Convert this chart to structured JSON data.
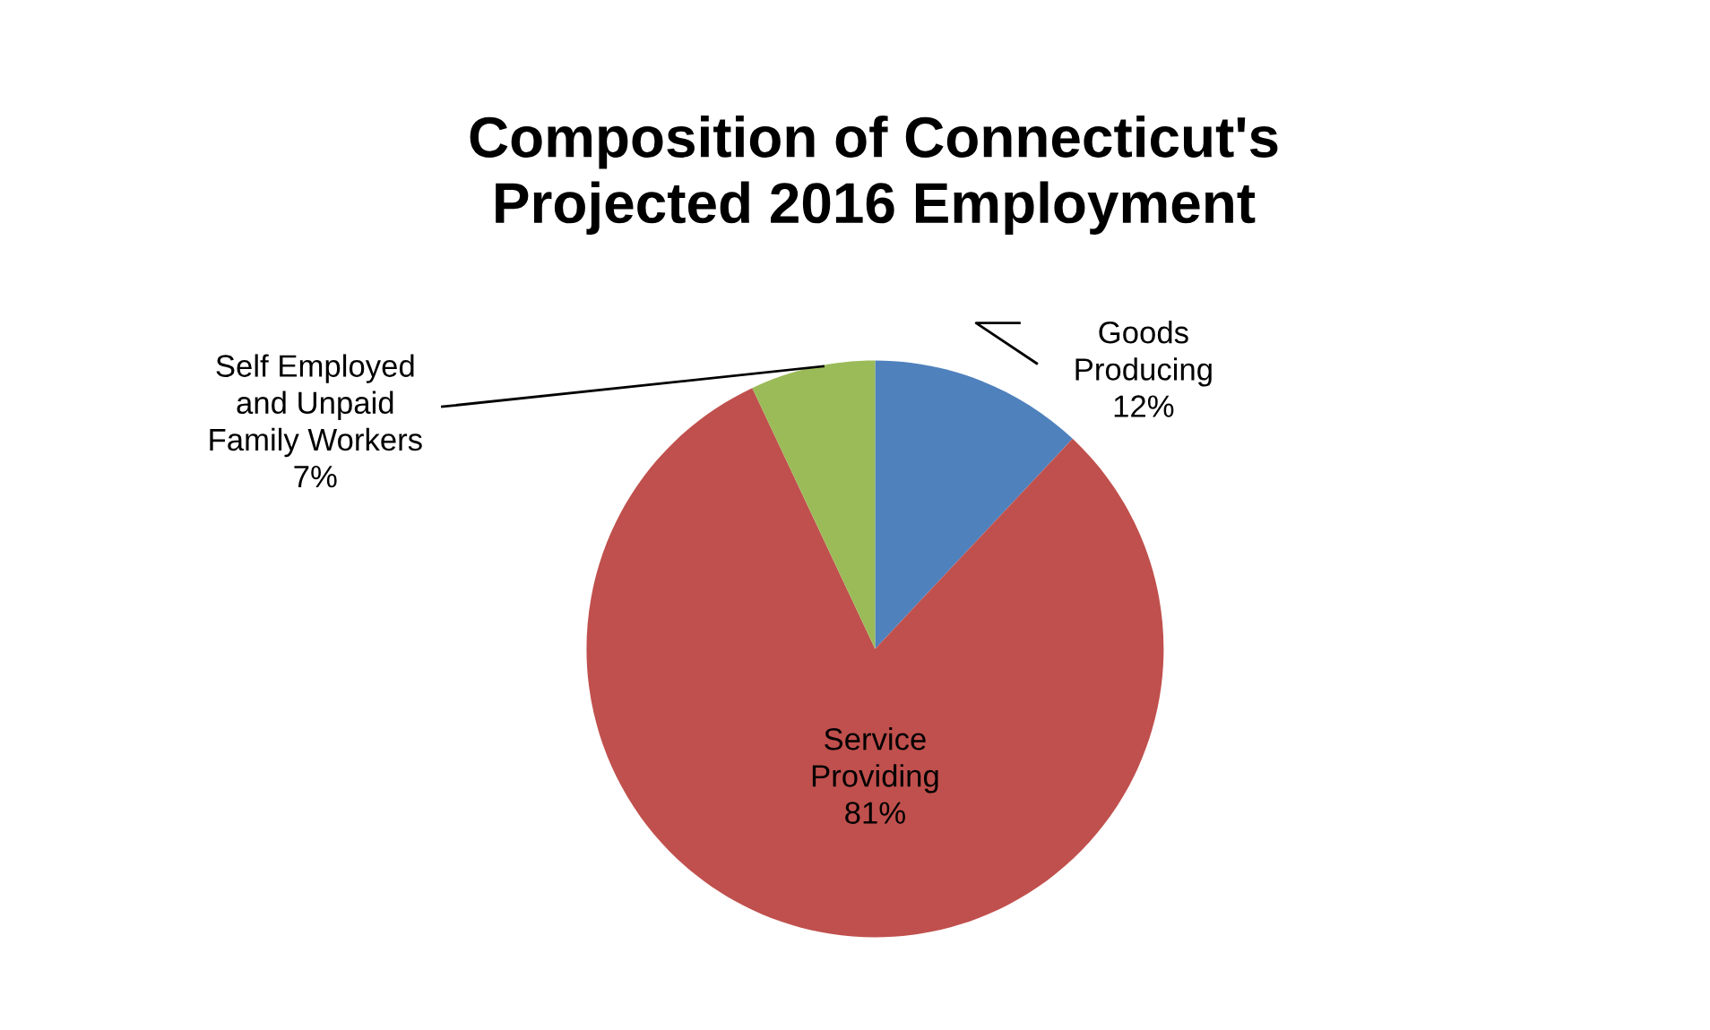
{
  "chart_data": {
    "type": "pie",
    "title": "Composition of Connecticut's\nProjected 2016 Employment",
    "categories": [
      "Goods\nProducing",
      "Service\nProviding",
      "Self Employed\nand Unpaid\nFamily Workers"
    ],
    "values": [
      12,
      81,
      7
    ],
    "colors": [
      "#4f81bd",
      "#c0504d",
      "#9bbb59"
    ],
    "value_labels": [
      "12%",
      "81%",
      "7%"
    ],
    "legend": false
  }
}
